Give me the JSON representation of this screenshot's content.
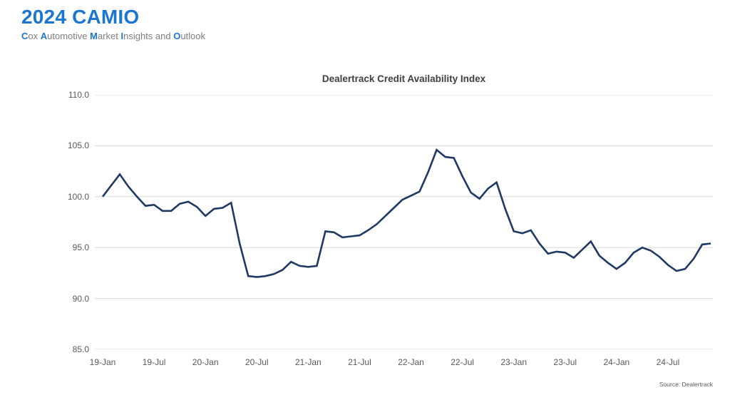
{
  "header": {
    "title": "2024 CAMIO",
    "subtitle_segments": [
      {
        "text": "C",
        "highlight": true
      },
      {
        "text": "ox ",
        "highlight": false
      },
      {
        "text": "A",
        "highlight": true
      },
      {
        "text": "utomotive ",
        "highlight": false
      },
      {
        "text": "M",
        "highlight": true
      },
      {
        "text": "arket ",
        "highlight": false
      },
      {
        "text": "I",
        "highlight": true
      },
      {
        "text": "nsights and ",
        "highlight": false
      },
      {
        "text": "O",
        "highlight": true
      },
      {
        "text": "utlook",
        "highlight": false
      }
    ]
  },
  "source": {
    "label": "Source: Dealertrack"
  },
  "colors": {
    "accent_blue": "#1b76d1",
    "line_navy": "#1F3864",
    "grid": "#D9D9D9",
    "text_gray": "#595959",
    "subtitle_gray": "#7f7f7f",
    "title_gray": "#404040"
  },
  "chart_data": {
    "type": "line",
    "title": "Dealertrack Credit Availability Index",
    "xlabel": "",
    "ylabel": "",
    "ylim": [
      85.0,
      110.0
    ],
    "grid": "horizontal",
    "legend": "none",
    "y_ticks": [
      {
        "value": 110.0,
        "label": "110.0"
      },
      {
        "value": 105.0,
        "label": "105.0"
      },
      {
        "value": 100.0,
        "label": "100.0"
      },
      {
        "value": 95.0,
        "label": "95.0"
      },
      {
        "value": 90.0,
        "label": "90.0"
      },
      {
        "value": 85.0,
        "label": "85.0"
      }
    ],
    "x_tick_labels": [
      "19-Jan",
      "19-Jul",
      "20-Jan",
      "20-Jul",
      "21-Jan",
      "21-Jul",
      "22-Jan",
      "22-Jul",
      "23-Jan",
      "23-Jul",
      "24-Jan",
      "24-Jul"
    ],
    "categories": [
      "19-Jan",
      "19-Feb",
      "19-Mar",
      "19-Apr",
      "19-May",
      "19-Jun",
      "19-Jul",
      "19-Aug",
      "19-Sep",
      "19-Oct",
      "19-Nov",
      "19-Dec",
      "20-Jan",
      "20-Feb",
      "20-Mar",
      "20-Apr",
      "20-May",
      "20-Jun",
      "20-Jul",
      "20-Aug",
      "20-Sep",
      "20-Oct",
      "20-Nov",
      "20-Dec",
      "21-Jan",
      "21-Feb",
      "21-Mar",
      "21-Apr",
      "21-May",
      "21-Jun",
      "21-Jul",
      "21-Aug",
      "21-Sep",
      "21-Oct",
      "21-Nov",
      "21-Dec",
      "22-Jan",
      "22-Feb",
      "22-Mar",
      "22-Apr",
      "22-May",
      "22-Jun",
      "22-Jul",
      "22-Aug",
      "22-Sep",
      "22-Oct",
      "22-Nov",
      "22-Dec",
      "23-Jan",
      "23-Feb",
      "23-Mar",
      "23-Apr",
      "23-May",
      "23-Jun",
      "23-Jul",
      "23-Aug",
      "23-Sep",
      "23-Oct",
      "23-Nov",
      "23-Dec",
      "24-Jan",
      "24-Feb",
      "24-Mar",
      "24-Apr",
      "24-May",
      "24-Jun",
      "24-Jul",
      "24-Aug",
      "24-Sep",
      "24-Oct",
      "24-Nov",
      "24-Dec"
    ],
    "series": [
      {
        "name": "Dealertrack Credit Availability Index",
        "values": [
          100.0,
          101.1,
          102.2,
          101.0,
          100.0,
          99.1,
          99.2,
          98.6,
          98.6,
          99.3,
          99.5,
          99.0,
          98.1,
          98.8,
          98.9,
          99.4,
          95.4,
          92.2,
          92.1,
          92.2,
          92.4,
          92.8,
          93.6,
          93.2,
          93.1,
          93.2,
          96.6,
          96.5,
          96.0,
          96.1,
          96.2,
          96.7,
          97.3,
          98.1,
          98.9,
          99.7,
          100.1,
          100.5,
          102.4,
          104.6,
          103.9,
          103.8,
          102.0,
          100.4,
          99.8,
          100.8,
          101.4,
          98.8,
          96.6,
          96.4,
          96.7,
          95.4,
          94.4,
          94.6,
          94.5,
          94.0,
          94.8,
          95.6,
          94.2,
          93.5,
          92.9,
          93.5,
          94.5,
          95.0,
          94.7,
          94.1,
          93.3,
          92.7,
          92.9,
          93.9,
          95.3,
          95.4
        ]
      }
    ]
  }
}
